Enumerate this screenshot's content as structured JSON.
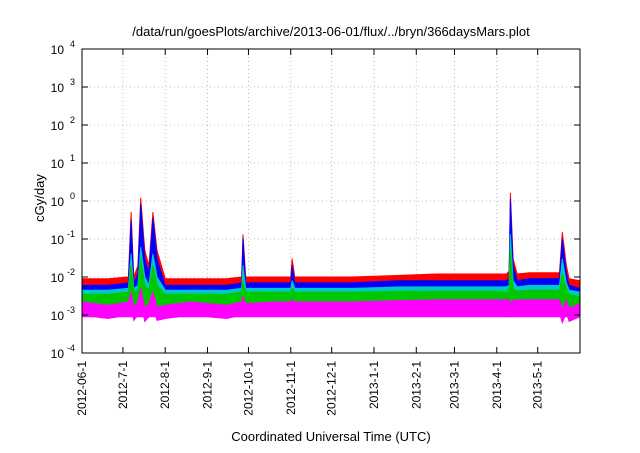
{
  "chart_data": {
    "type": "line",
    "title": "/data/run/goesPlots/archive/2013-06-01/flux/../bryn/366daysMars.plot",
    "xlabel": "Coordinated Universal Time (UTC)",
    "ylabel": "cGy/day",
    "y_scale": "log",
    "ylim": [
      0.0001,
      10000
    ],
    "x_range": [
      "2012-06-01",
      "2013-06-01"
    ],
    "grid": true,
    "y_ticks": [
      {
        "value": 0.0001,
        "base": "10",
        "exp": "-4"
      },
      {
        "value": 0.001,
        "base": "10",
        "exp": "-3"
      },
      {
        "value": 0.01,
        "base": "10",
        "exp": "-2"
      },
      {
        "value": 0.1,
        "base": "10",
        "exp": "-1"
      },
      {
        "value": 1,
        "base": "10",
        "exp": "0"
      },
      {
        "value": 10,
        "base": "10",
        "exp": "1"
      },
      {
        "value": 100,
        "base": "10",
        "exp": "2"
      },
      {
        "value": 1000,
        "base": "10",
        "exp": "3"
      },
      {
        "value": 10000,
        "base": "10",
        "exp": "4"
      }
    ],
    "x_ticks": [
      "2012-06-1",
      "2012-7-1",
      "2012-8-1",
      "2012-9-1",
      "2012-10-1",
      "2012-11-1",
      "2012-12-1",
      "2013-1-1",
      "2013-2-1",
      "2013-3-1",
      "2013-4-1",
      "2013-5-1"
    ],
    "x_tick_dates": [
      "2012-06-01",
      "2012-07-01",
      "2012-08-01",
      "2012-09-01",
      "2012-10-01",
      "2012-11-01",
      "2012-12-01",
      "2013-01-01",
      "2013-02-01",
      "2013-03-01",
      "2013-04-01",
      "2013-05-01"
    ],
    "series": [
      {
        "color": "#ff0000",
        "x": [
          "2012-06-01",
          "2012-06-20",
          "2012-07-05",
          "2012-07-07",
          "2012-07-09",
          "2012-07-12",
          "2012-07-14",
          "2012-07-17",
          "2012-07-20",
          "2012-07-23",
          "2012-07-26",
          "2012-08-01",
          "2012-08-20",
          "2012-09-15",
          "2012-09-26",
          "2012-09-27",
          "2012-09-29",
          "2012-10-20",
          "2012-11-01",
          "2012-11-02",
          "2012-11-04",
          "2012-12-15",
          "2013-01-20",
          "2013-02-15",
          "2013-03-10",
          "2013-04-08",
          "2013-04-10",
          "2013-04-11",
          "2013-04-13",
          "2013-04-16",
          "2013-04-25",
          "2013-05-17",
          "2013-05-19",
          "2013-05-22",
          "2013-05-24",
          "2013-06-01"
        ],
        "y": [
          0.009,
          0.009,
          0.01,
          0.5,
          0.01,
          0.02,
          1.2,
          0.05,
          0.02,
          0.5,
          0.05,
          0.009,
          0.009,
          0.009,
          0.01,
          0.13,
          0.01,
          0.01,
          0.01,
          0.03,
          0.01,
          0.01,
          0.011,
          0.012,
          0.012,
          0.012,
          0.014,
          1.6,
          0.03,
          0.012,
          0.013,
          0.013,
          0.15,
          0.02,
          0.009,
          0.008
        ]
      },
      {
        "color": "#0000ff",
        "x": [
          "2012-06-01",
          "2012-06-20",
          "2012-07-05",
          "2012-07-07",
          "2012-07-09",
          "2012-07-12",
          "2012-07-14",
          "2012-07-17",
          "2012-07-20",
          "2012-07-23",
          "2012-07-26",
          "2012-08-01",
          "2012-08-20",
          "2012-09-15",
          "2012-09-26",
          "2012-09-27",
          "2012-09-29",
          "2012-10-20",
          "2012-11-01",
          "2012-11-02",
          "2012-11-04",
          "2012-12-15",
          "2013-01-20",
          "2013-02-15",
          "2013-03-10",
          "2013-04-08",
          "2013-04-10",
          "2013-04-11",
          "2013-04-13",
          "2013-04-16",
          "2013-04-25",
          "2013-05-17",
          "2013-05-19",
          "2013-05-22",
          "2013-05-24",
          "2013-06-01"
        ],
        "y": [
          0.006,
          0.006,
          0.007,
          0.3,
          0.007,
          0.012,
          0.8,
          0.03,
          0.012,
          0.35,
          0.03,
          0.006,
          0.006,
          0.006,
          0.007,
          0.1,
          0.007,
          0.007,
          0.007,
          0.02,
          0.007,
          0.007,
          0.008,
          0.008,
          0.008,
          0.008,
          0.009,
          1.1,
          0.02,
          0.008,
          0.009,
          0.009,
          0.1,
          0.012,
          0.006,
          0.005
        ]
      },
      {
        "color": "#00c8c8",
        "x": [
          "2012-06-01",
          "2012-06-20",
          "2012-07-05",
          "2012-07-07",
          "2012-07-09",
          "2012-07-12",
          "2012-07-14",
          "2012-07-17",
          "2012-07-20",
          "2012-07-23",
          "2012-07-26",
          "2012-08-01",
          "2012-08-20",
          "2012-09-15",
          "2012-09-26",
          "2012-09-27",
          "2012-09-29",
          "2012-10-20",
          "2012-11-01",
          "2012-11-02",
          "2012-11-04",
          "2012-12-15",
          "2013-01-20",
          "2013-02-15",
          "2013-03-10",
          "2013-04-08",
          "2013-04-10",
          "2013-04-11",
          "2013-04-13",
          "2013-04-16",
          "2013-04-25",
          "2013-05-17",
          "2013-05-19",
          "2013-05-22",
          "2013-05-24",
          "2013-06-01"
        ],
        "y": [
          0.0045,
          0.0045,
          0.005,
          0.04,
          0.005,
          0.006,
          0.06,
          0.01,
          0.006,
          0.04,
          0.01,
          0.0045,
          0.0045,
          0.0045,
          0.005,
          0.02,
          0.005,
          0.005,
          0.005,
          0.008,
          0.005,
          0.005,
          0.0055,
          0.0055,
          0.0055,
          0.0055,
          0.006,
          0.13,
          0.008,
          0.0055,
          0.006,
          0.006,
          0.03,
          0.007,
          0.0045,
          0.004
        ]
      },
      {
        "color": "#00c800",
        "x": [
          "2012-06-01",
          "2012-06-20",
          "2012-07-05",
          "2012-07-07",
          "2012-07-09",
          "2012-07-12",
          "2012-07-14",
          "2012-07-17",
          "2012-07-20",
          "2012-07-23",
          "2012-07-26",
          "2012-08-01",
          "2012-08-20",
          "2012-09-15",
          "2012-09-26",
          "2012-09-27",
          "2012-09-29",
          "2012-10-20",
          "2012-11-01",
          "2012-11-02",
          "2012-11-04",
          "2012-12-15",
          "2013-01-20",
          "2013-02-15",
          "2013-03-10",
          "2013-04-08",
          "2013-04-10",
          "2013-04-11",
          "2013-04-13",
          "2013-04-16",
          "2013-04-25",
          "2013-05-17",
          "2013-05-19",
          "2013-05-22",
          "2013-05-24",
          "2013-06-01"
        ],
        "y": [
          0.0035,
          0.0035,
          0.004,
          0.02,
          0.004,
          0.0045,
          0.03,
          0.006,
          0.0045,
          0.02,
          0.006,
          0.0035,
          0.0035,
          0.0035,
          0.004,
          0.008,
          0.004,
          0.004,
          0.004,
          0.005,
          0.004,
          0.004,
          0.0042,
          0.0042,
          0.0042,
          0.0042,
          0.0045,
          0.05,
          0.005,
          0.0042,
          0.0045,
          0.0045,
          0.012,
          0.005,
          0.0035,
          0.003
        ]
      },
      {
        "color": "#ff00ff",
        "x": [
          "2012-06-01",
          "2012-06-20",
          "2012-07-05",
          "2012-07-07",
          "2012-07-09",
          "2012-07-12",
          "2012-07-14",
          "2012-07-17",
          "2012-07-20",
          "2012-07-23",
          "2012-07-26",
          "2012-08-01",
          "2012-08-20",
          "2012-09-15",
          "2012-09-26",
          "2012-09-27",
          "2012-09-29",
          "2012-10-20",
          "2012-11-01",
          "2012-11-02",
          "2012-11-04",
          "2012-12-15",
          "2013-01-20",
          "2013-02-15",
          "2013-03-10",
          "2013-04-08",
          "2013-04-10",
          "2013-04-11",
          "2013-04-13",
          "2013-04-16",
          "2013-04-25",
          "2013-05-17",
          "2013-05-19",
          "2013-05-22",
          "2013-05-24",
          "2013-06-01"
        ],
        "y": [
          0.0022,
          0.0018,
          0.0022,
          0.004,
          0.0016,
          0.0022,
          0.005,
          0.0015,
          0.002,
          0.004,
          0.0016,
          0.0018,
          0.0022,
          0.0018,
          0.0022,
          0.003,
          0.002,
          0.0022,
          0.0022,
          0.0025,
          0.0022,
          0.0022,
          0.0024,
          0.0025,
          0.0025,
          0.0025,
          0.0026,
          0.002,
          0.0024,
          0.0025,
          0.0025,
          0.0025,
          0.0014,
          0.0025,
          0.0015,
          0.002
        ]
      }
    ]
  }
}
